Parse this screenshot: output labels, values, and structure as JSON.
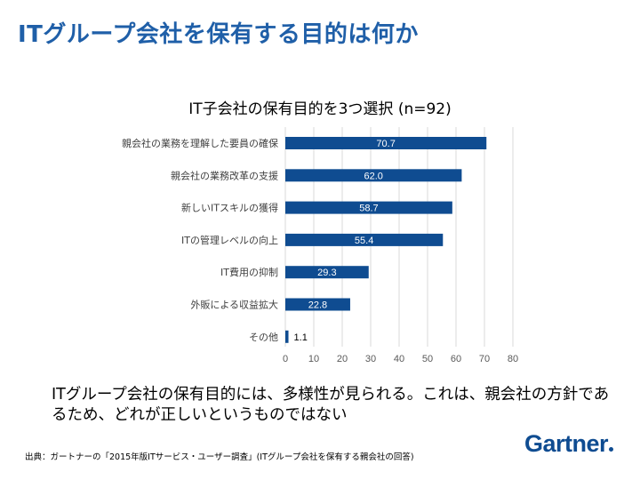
{
  "slide": {
    "title": "ITグループ会社を保有する目的は何か",
    "summary": "ITグループ会社の保有目的には、多様性が見られる。これは、親会社の方針であるため、どれが正しいというものではない",
    "source": "出典：ガートナーの「2015年版ITサービス・ユーザー調査」(ITグループ会社を保有する親会社の回答)",
    "logo": "Gartner"
  },
  "colors": {
    "title": "#1f5fa8",
    "bar": "#0f4c91",
    "logo": "#0f4c91",
    "grid": "#d9d9d9"
  },
  "chart_data": {
    "type": "bar",
    "orientation": "horizontal",
    "title": "IT子会社の保有目的を3つ選択 (n=92)",
    "categories": [
      "親会社の業務を理解した要員の確保",
      "親会社の業務改革の支援",
      "新しいITスキルの獲得",
      "ITの管理レベルの向上",
      "IT費用の抑制",
      "外販による収益拡大",
      "その他"
    ],
    "values": [
      70.7,
      62.0,
      58.7,
      55.4,
      29.3,
      22.8,
      1.1
    ],
    "data_labels": [
      "70.7",
      "62.0",
      "58.7",
      "55.4",
      "29.3",
      "22.8",
      "1.1"
    ],
    "xlim": [
      0,
      80
    ],
    "xticks": [
      0,
      10,
      20,
      30,
      40,
      50,
      60,
      70,
      80
    ],
    "grid": true,
    "legend": false
  }
}
